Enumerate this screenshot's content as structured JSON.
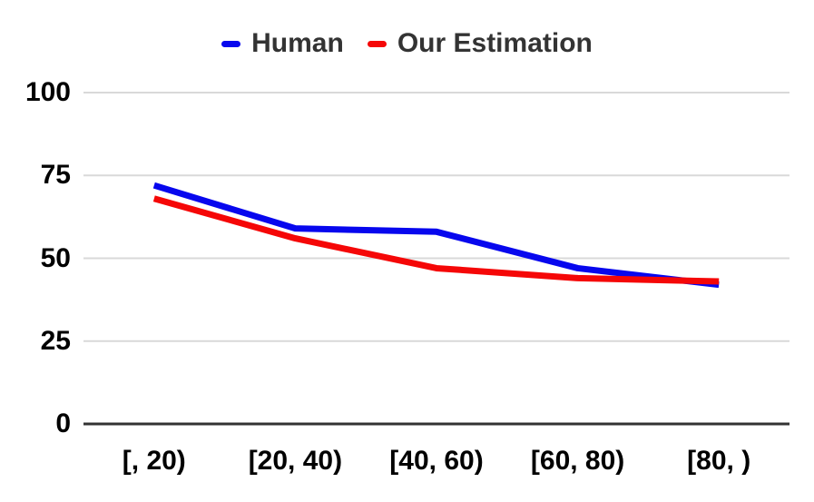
{
  "chart_data": {
    "type": "line",
    "title": "",
    "categories": [
      "[, 20)",
      "[20, 40)",
      "[40, 60)",
      "[60, 80)",
      "[80, )"
    ],
    "series": [
      {
        "name": "Human",
        "color": "#0707ee",
        "values": [
          72,
          59,
          58,
          47,
          42
        ]
      },
      {
        "name": "Our Estimation",
        "color": "#f50707",
        "values": [
          68,
          56,
          47,
          44,
          43
        ]
      }
    ],
    "xlabel": "",
    "ylabel": "",
    "ylim": [
      0,
      100
    ],
    "yticks": [
      0,
      25,
      50,
      75,
      100
    ],
    "grid": "horizontal-on",
    "legend_position": "top-center",
    "colors": {
      "background": "#ffffff",
      "grid_line": "#d9d9d9",
      "axis_line": "#333333",
      "tick_label": "#000000",
      "legend_text": "#333333"
    }
  }
}
